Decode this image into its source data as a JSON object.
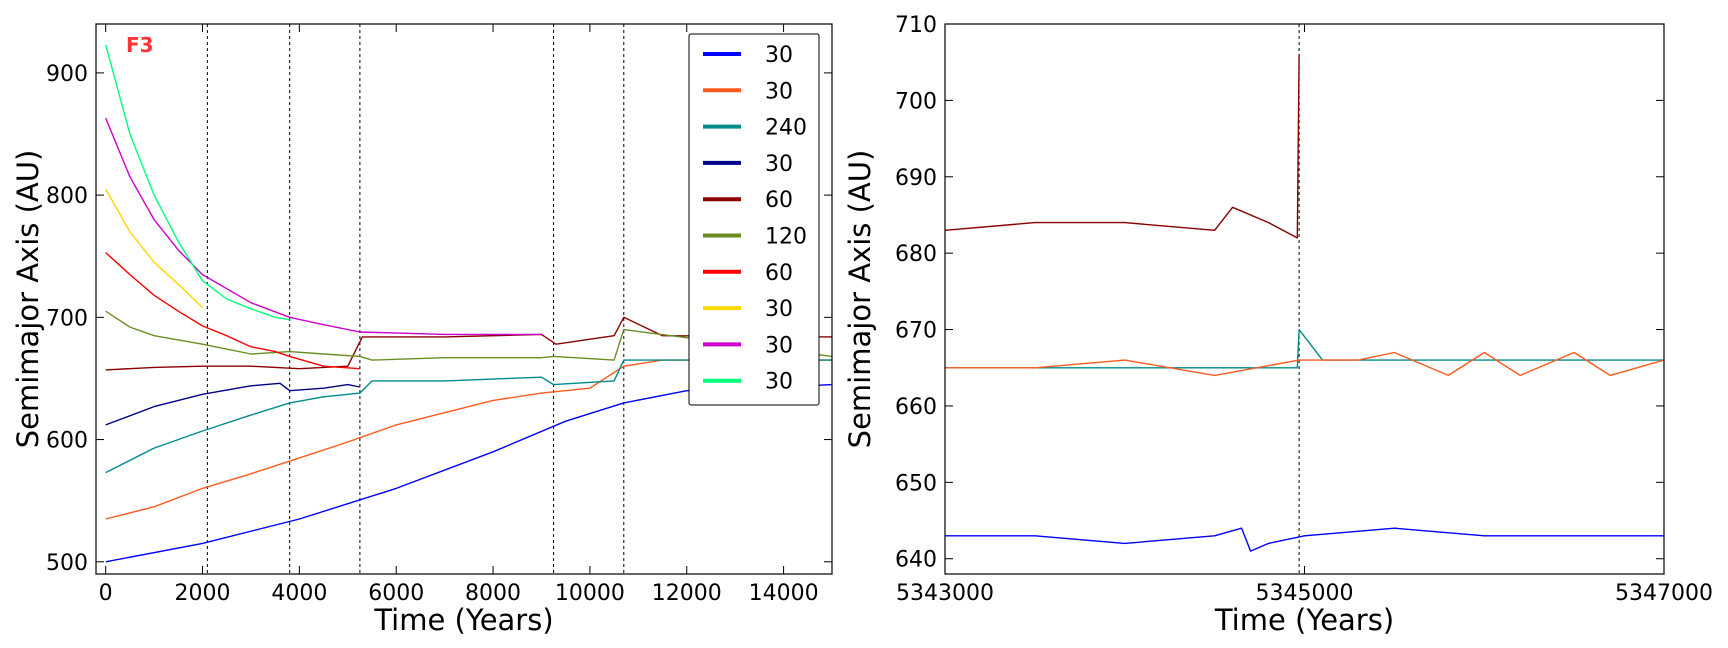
{
  "chart_data": [
    {
      "type": "line",
      "annotation": "F3",
      "annotation_color": "#ff3333",
      "xlabel": "Time (Years)",
      "ylabel": "Semimajor Axis (AU)",
      "xlim": [
        -200,
        15000
      ],
      "ylim": [
        490,
        940
      ],
      "xticks": [
        0,
        2000,
        4000,
        6000,
        8000,
        10000,
        12000,
        14000
      ],
      "yticks": [
        500,
        600,
        700,
        800,
        900
      ],
      "vlines": [
        2100,
        3800,
        5250,
        9250,
        10700
      ],
      "legend_position": "top-right",
      "series": [
        {
          "name": "30",
          "color": "#0000ff",
          "x": [
            0,
            2000,
            4000,
            6000,
            8000,
            9500,
            10700,
            12000,
            13000,
            14000,
            15000
          ],
          "y": [
            500,
            515,
            535,
            560,
            590,
            615,
            630,
            640,
            642,
            643,
            645
          ]
        },
        {
          "name": "30",
          "color": "#ff5a1e",
          "x": [
            0,
            1000,
            2000,
            3000,
            4000,
            5000,
            6000,
            7000,
            8000,
            9000,
            10000,
            10700,
            11500,
            15000
          ],
          "y": [
            535,
            545,
            560,
            572,
            585,
            598,
            612,
            622,
            632,
            638,
            642,
            660,
            665,
            665
          ]
        },
        {
          "name": "240",
          "color": "#008b8b",
          "x": [
            0,
            1000,
            2000,
            3000,
            3800,
            4500,
            5250,
            5500,
            7000,
            9000,
            9250,
            10500,
            10700,
            15000
          ],
          "y": [
            573,
            593,
            607,
            620,
            630,
            635,
            638,
            648,
            648,
            651,
            645,
            648,
            665,
            665
          ]
        },
        {
          "name": "30",
          "color": "#00008b",
          "x": [
            0,
            1000,
            2000,
            3000,
            3600,
            3800,
            4500,
            5000,
            5250
          ],
          "y": [
            612,
            627,
            637,
            644,
            646,
            640,
            642,
            645,
            643
          ]
        },
        {
          "name": "60",
          "color": "#8b0000",
          "x": [
            0,
            1000,
            2000,
            3000,
            4000,
            5000,
            5300,
            7000,
            9000,
            9300,
            10500,
            10700,
            11500,
            15000
          ],
          "y": [
            657,
            659,
            660,
            660,
            658,
            660,
            684,
            684,
            686,
            678,
            685,
            700,
            685,
            684
          ]
        },
        {
          "name": "120",
          "color": "#6b8e23",
          "x": [
            0,
            500,
            1000,
            2000,
            3000,
            3800,
            4500,
            5250,
            5500,
            7000,
            9000,
            9250,
            10500,
            10700,
            15000
          ],
          "y": [
            705,
            692,
            685,
            678,
            670,
            672,
            670,
            668,
            665,
            667,
            667,
            668,
            665,
            690,
            668
          ]
        },
        {
          "name": "60",
          "color": "#ff0000",
          "x": [
            0,
            500,
            1000,
            1500,
            2000,
            2500,
            3000,
            3500,
            3800,
            4500,
            5250
          ],
          "y": [
            753,
            735,
            718,
            705,
            693,
            685,
            676,
            672,
            668,
            660,
            658
          ]
        },
        {
          "name": "30",
          "color": "#ffd700",
          "x": [
            0,
            500,
            1000,
            1500,
            2000
          ],
          "y": [
            805,
            770,
            745,
            727,
            708
          ]
        },
        {
          "name": "30",
          "color": "#cc00cc",
          "x": [
            0,
            500,
            1000,
            1500,
            2000,
            3000,
            3800,
            4500,
            5250,
            7000,
            9000
          ],
          "y": [
            863,
            815,
            780,
            755,
            735,
            712,
            700,
            694,
            688,
            686,
            686
          ]
        },
        {
          "name": "30",
          "color": "#00ff7f",
          "x": [
            0,
            500,
            1000,
            1500,
            2000,
            2500,
            3000,
            3500,
            3800
          ],
          "y": [
            923,
            850,
            800,
            762,
            730,
            715,
            707,
            700,
            698
          ]
        }
      ]
    },
    {
      "type": "line",
      "xlabel": "Time (Years)",
      "ylabel": "Semimajor Axis (AU)",
      "xlim": [
        5343000,
        5347000
      ],
      "ylim": [
        638,
        710
      ],
      "xticks": [
        5343000,
        5345000,
        5347000
      ],
      "yticks": [
        640,
        650,
        660,
        670,
        680,
        690,
        700,
        710
      ],
      "vlines": [
        5344970
      ],
      "series": [
        {
          "name": "60",
          "color": "#8b0000",
          "x": [
            5343000,
            5343500,
            5344000,
            5344500,
            5344600,
            5344800,
            5344960,
            5344970
          ],
          "y": [
            683,
            684,
            684,
            683,
            686,
            684,
            682,
            706
          ]
        },
        {
          "name": "240",
          "color": "#008b8b",
          "x": [
            5343000,
            5344000,
            5344500,
            5344960,
            5344970,
            5345100,
            5345500,
            5346000,
            5346500,
            5347000
          ],
          "y": [
            665,
            665,
            665,
            665,
            670,
            666,
            666,
            666,
            666,
            666
          ]
        },
        {
          "name": "30",
          "color": "#ff5a1e",
          "x": [
            5343000,
            5343500,
            5344000,
            5344500,
            5344970,
            5345300,
            5345500,
            5345800,
            5346000,
            5346200,
            5346500,
            5346700,
            5347000
          ],
          "y": [
            665,
            665,
            666,
            664,
            666,
            666,
            667,
            664,
            667,
            664,
            667,
            664,
            666
          ]
        },
        {
          "name": "30",
          "color": "#0000ff",
          "x": [
            5343000,
            5343500,
            5344000,
            5344500,
            5344650,
            5344700,
            5344800,
            5345000,
            5345500,
            5346000,
            5346500,
            5347000
          ],
          "y": [
            643,
            643,
            642,
            643,
            644,
            641,
            642,
            643,
            644,
            643,
            643,
            643
          ]
        }
      ]
    }
  ]
}
